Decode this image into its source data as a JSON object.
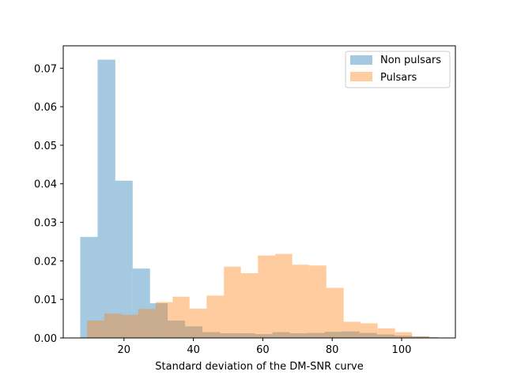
{
  "chart_data": {
    "type": "bar",
    "title": "",
    "xlabel": "Standard deviation of the DM-SNR curve",
    "ylabel": "",
    "xlim": [
      2.5,
      115.5
    ],
    "ylim": [
      0,
      0.0758
    ],
    "xticks": [
      20,
      40,
      60,
      80,
      100
    ],
    "yticks": [
      0.0,
      0.01,
      0.02,
      0.03,
      0.04,
      0.05,
      0.06,
      0.07
    ],
    "ytick_labels": [
      "0.00",
      "0.01",
      "0.02",
      "0.03",
      "0.04",
      "0.05",
      "0.06",
      "0.07"
    ],
    "grid": false,
    "legend": "top-right",
    "series": [
      {
        "name": "Non pulsars",
        "color": "#1f77b4",
        "opacity": 0.4,
        "bins": [
          {
            "x0": 7.4,
            "x1": 12.4,
            "y": 0.0262
          },
          {
            "x0": 12.4,
            "x1": 17.5,
            "y": 0.0722
          },
          {
            "x0": 17.5,
            "x1": 22.5,
            "y": 0.0408
          },
          {
            "x0": 22.5,
            "x1": 27.5,
            "y": 0.018
          },
          {
            "x0": 27.5,
            "x1": 32.6,
            "y": 0.009
          },
          {
            "x0": 32.6,
            "x1": 37.6,
            "y": 0.0045
          },
          {
            "x0": 37.6,
            "x1": 42.6,
            "y": 0.003
          },
          {
            "x0": 42.6,
            "x1": 47.7,
            "y": 0.0015
          },
          {
            "x0": 47.7,
            "x1": 52.7,
            "y": 0.0012
          },
          {
            "x0": 52.7,
            "x1": 57.7,
            "y": 0.0012
          },
          {
            "x0": 57.7,
            "x1": 62.8,
            "y": 0.001
          },
          {
            "x0": 62.8,
            "x1": 67.8,
            "y": 0.0015
          },
          {
            "x0": 67.8,
            "x1": 72.8,
            "y": 0.0012
          },
          {
            "x0": 72.8,
            "x1": 77.9,
            "y": 0.0013
          },
          {
            "x0": 77.9,
            "x1": 82.9,
            "y": 0.0016
          },
          {
            "x0": 82.9,
            "x1": 87.9,
            "y": 0.0017
          },
          {
            "x0": 87.9,
            "x1": 92.9,
            "y": 0.0013
          },
          {
            "x0": 92.9,
            "x1": 98.0,
            "y": 0.0009
          },
          {
            "x0": 98.0,
            "x1": 103.0,
            "y": 0.0006
          },
          {
            "x0": 103.0,
            "x1": 108.0,
            "y": 0.0004
          },
          {
            "x0": 108.0,
            "x1": 110.6,
            "y": 0.0002
          }
        ]
      },
      {
        "name": "Pulsars",
        "color": "#ff7f0e",
        "opacity": 0.4,
        "bins": [
          {
            "x0": 9.4,
            "x1": 14.3,
            "y": 0.0045
          },
          {
            "x0": 14.3,
            "x1": 19.2,
            "y": 0.0063
          },
          {
            "x0": 19.2,
            "x1": 24.1,
            "y": 0.006
          },
          {
            "x0": 24.1,
            "x1": 29.1,
            "y": 0.0075
          },
          {
            "x0": 29.1,
            "x1": 34.0,
            "y": 0.0093
          },
          {
            "x0": 34.0,
            "x1": 38.9,
            "y": 0.0107
          },
          {
            "x0": 38.9,
            "x1": 43.8,
            "y": 0.0076
          },
          {
            "x0": 43.8,
            "x1": 48.8,
            "y": 0.011
          },
          {
            "x0": 48.8,
            "x1": 53.7,
            "y": 0.0185
          },
          {
            "x0": 53.7,
            "x1": 58.6,
            "y": 0.0168
          },
          {
            "x0": 58.6,
            "x1": 63.6,
            "y": 0.0214
          },
          {
            "x0": 63.6,
            "x1": 68.5,
            "y": 0.0218
          },
          {
            "x0": 68.5,
            "x1": 73.4,
            "y": 0.019
          },
          {
            "x0": 73.4,
            "x1": 78.3,
            "y": 0.0188
          },
          {
            "x0": 78.3,
            "x1": 83.3,
            "y": 0.013
          },
          {
            "x0": 83.3,
            "x1": 88.2,
            "y": 0.0042
          },
          {
            "x0": 88.2,
            "x1": 93.1,
            "y": 0.0038
          },
          {
            "x0": 93.1,
            "x1": 98.1,
            "y": 0.0025
          },
          {
            "x0": 98.1,
            "x1": 103.0,
            "y": 0.0015
          },
          {
            "x0": 103.0,
            "x1": 107.9,
            "y": 0.0004
          }
        ]
      }
    ]
  }
}
